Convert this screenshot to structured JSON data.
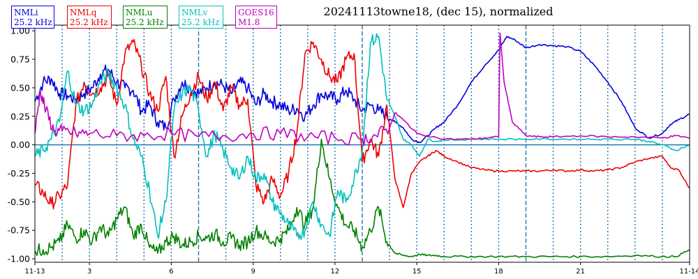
{
  "chart_data": {
    "type": "line",
    "title": "20241113towne18, (dec 15), normalized",
    "xlabel": "",
    "ylabel": "",
    "ylim": [
      -1.03,
      1.05
    ],
    "y_ticks": [
      "1.00",
      "0.75",
      "0.50",
      "0.25",
      "0.00",
      "-0.25",
      "-0.50",
      "-0.75",
      "-1.00"
    ],
    "x_tick_labels": [
      {
        "day": 0,
        "label": "11-13"
      },
      {
        "day": 2,
        "label": "3"
      },
      {
        "day": 5,
        "label": "6"
      },
      {
        "day": 8,
        "label": "9"
      },
      {
        "day": 11,
        "label": "12"
      },
      {
        "day": 14,
        "label": "15"
      },
      {
        "day": 17,
        "label": "18"
      },
      {
        "day": 20,
        "label": "21"
      },
      {
        "day": 23,
        "label": "11-14"
      }
    ],
    "x_range_hours": [
      0,
      24
    ],
    "vlines_dotted_hours": [
      1,
      2,
      3,
      4,
      5,
      7,
      8,
      9,
      10,
      11,
      13,
      14,
      15,
      16,
      17,
      19,
      20,
      21,
      22,
      23
    ],
    "vlines_dashed_hours": [
      6,
      12,
      18
    ],
    "hline_zero": true,
    "legend": [
      {
        "name": "NMLi",
        "sub": "25.2 kHz",
        "color": "#0000dd"
      },
      {
        "name": "NMLq",
        "sub": "25.2 kHz",
        "color": "#ee0000"
      },
      {
        "name": "NMLu",
        "sub": "25.2 kHz",
        "color": "#008000"
      },
      {
        "name": "NMLv",
        "sub": "25.2 kHz",
        "color": "#00bfbf"
      },
      {
        "name": "GOES16",
        "sub": "M1.8",
        "color": "#bf00bf"
      }
    ],
    "series": [
      {
        "name": "NMLi",
        "color": "#0000dd",
        "x": [
          0,
          0.3,
          0.6,
          0.9,
          1.2,
          1.5,
          1.8,
          2.1,
          2.4,
          2.7,
          3.0,
          3.3,
          3.6,
          3.9,
          4.2,
          4.5,
          4.8,
          5.1,
          5.4,
          5.7,
          6.0,
          6.3,
          6.6,
          6.9,
          7.2,
          7.5,
          7.8,
          8.1,
          8.4,
          8.7,
          9.0,
          9.3,
          9.6,
          9.9,
          10.2,
          10.5,
          10.8,
          11.1,
          11.4,
          11.7,
          12.0,
          12.3,
          12.6,
          12.9,
          13.2,
          13.5,
          13.8,
          14.1,
          14.4,
          14.7,
          15.0,
          15.5,
          16.0,
          16.5,
          17.0,
          17.3,
          17.6,
          18.0,
          18.5,
          19.0,
          19.5,
          20.0,
          20.5,
          21.0,
          21.5,
          22.0,
          22.5,
          23.0,
          23.3,
          23.6,
          24.0
        ],
        "y": [
          0.38,
          0.55,
          0.58,
          0.45,
          0.43,
          0.4,
          0.45,
          0.5,
          0.62,
          0.66,
          0.55,
          0.5,
          0.48,
          0.3,
          0.35,
          0.2,
          0.15,
          0.4,
          0.55,
          0.5,
          0.45,
          0.5,
          0.55,
          0.52,
          0.45,
          0.55,
          0.5,
          0.35,
          0.45,
          0.38,
          0.35,
          0.3,
          0.32,
          0.25,
          0.35,
          0.45,
          0.42,
          0.4,
          0.48,
          0.4,
          0.3,
          0.35,
          0.3,
          0.25,
          0.2,
          0.15,
          0.05,
          0.02,
          0.08,
          0.15,
          0.2,
          0.35,
          0.55,
          0.7,
          0.83,
          0.95,
          0.92,
          0.85,
          0.88,
          0.87,
          0.86,
          0.82,
          0.7,
          0.55,
          0.38,
          0.15,
          0.06,
          0.1,
          0.18,
          0.22,
          0.27
        ]
      },
      {
        "name": "NMLq",
        "color": "#ee0000",
        "x": [
          0,
          0.3,
          0.6,
          0.9,
          1.2,
          1.5,
          1.8,
          2.1,
          2.4,
          2.7,
          3.0,
          3.3,
          3.6,
          3.9,
          4.2,
          4.5,
          4.8,
          5.1,
          5.4,
          5.7,
          6.0,
          6.3,
          6.6,
          6.9,
          7.2,
          7.5,
          7.8,
          8.1,
          8.4,
          8.7,
          9.0,
          9.3,
          9.6,
          9.9,
          10.2,
          10.5,
          10.8,
          11.1,
          11.4,
          11.7,
          12.0,
          12.3,
          12.6,
          12.9,
          13.2,
          13.5,
          13.8,
          14.1,
          14.4,
          14.7,
          15.0,
          15.5,
          16.0,
          16.5,
          17.0,
          17.5,
          18.0,
          18.5,
          19.0,
          19.5,
          20.0,
          20.5,
          21.0,
          21.5,
          22.0,
          22.5,
          23.0,
          23.3,
          23.6,
          24.0
        ],
        "y": [
          -0.35,
          -0.42,
          -0.52,
          -0.45,
          -0.35,
          0.35,
          0.55,
          0.45,
          0.5,
          0.6,
          0.35,
          0.8,
          0.9,
          0.7,
          0.45,
          0.3,
          0.6,
          -0.1,
          0.25,
          0.45,
          0.6,
          0.4,
          0.55,
          0.3,
          0.5,
          0.35,
          0.4,
          -0.35,
          -0.5,
          -0.3,
          -0.45,
          -0.25,
          0.1,
          0.8,
          0.9,
          0.75,
          0.6,
          0.55,
          0.75,
          0.8,
          -0.15,
          0.05,
          -0.1,
          0.35,
          -0.3,
          -0.55,
          -0.25,
          -0.15,
          -0.1,
          -0.05,
          -0.1,
          -0.15,
          -0.2,
          -0.22,
          -0.23,
          -0.23,
          -0.23,
          -0.23,
          -0.22,
          -0.23,
          -0.22,
          -0.23,
          -0.22,
          -0.2,
          -0.15,
          -0.12,
          -0.1,
          -0.2,
          -0.22,
          -0.38
        ]
      },
      {
        "name": "NMLu",
        "color": "#008000",
        "x": [
          0,
          0.3,
          0.6,
          0.9,
          1.2,
          1.5,
          1.8,
          2.1,
          2.4,
          2.7,
          3.0,
          3.3,
          3.6,
          3.9,
          4.2,
          4.5,
          4.8,
          5.1,
          5.4,
          5.7,
          6.0,
          6.3,
          6.6,
          6.9,
          7.2,
          7.5,
          7.8,
          8.1,
          8.4,
          8.7,
          9.0,
          9.3,
          9.6,
          9.9,
          10.2,
          10.5,
          10.8,
          11.1,
          11.4,
          11.7,
          12.0,
          12.3,
          12.6,
          12.9,
          13.2,
          13.5,
          13.8,
          14.1,
          14.4,
          14.7,
          15.0,
          16.0,
          17.0,
          18.0,
          19.0,
          20.0,
          21.0,
          22.0,
          23.0,
          23.5,
          24.0
        ],
        "y": [
          -0.93,
          -0.92,
          -0.9,
          -0.85,
          -0.7,
          -0.82,
          -0.75,
          -0.85,
          -0.72,
          -0.8,
          -0.65,
          -0.55,
          -0.8,
          -0.7,
          -0.9,
          -0.95,
          -0.85,
          -0.8,
          -0.88,
          -0.85,
          -0.8,
          -0.82,
          -0.78,
          -0.85,
          -0.82,
          -0.88,
          -0.85,
          -0.75,
          -0.8,
          -0.85,
          -0.82,
          -0.75,
          -0.55,
          -0.7,
          -0.55,
          0.05,
          -0.3,
          -0.55,
          -0.7,
          -0.75,
          -0.9,
          -0.75,
          -0.55,
          -0.85,
          -0.95,
          -0.97,
          -0.98,
          -0.96,
          -0.97,
          -0.97,
          -0.98,
          -0.98,
          -0.98,
          -0.98,
          -0.98,
          -0.98,
          -0.98,
          -0.97,
          -0.98,
          -0.98,
          -0.92
        ]
      },
      {
        "name": "NMLv",
        "color": "#00bfbf",
        "x": [
          0,
          0.3,
          0.6,
          0.9,
          1.2,
          1.5,
          1.8,
          2.1,
          2.4,
          2.7,
          3.0,
          3.3,
          3.6,
          3.9,
          4.2,
          4.5,
          4.8,
          5.1,
          5.4,
          5.7,
          6.0,
          6.3,
          6.6,
          6.9,
          7.2,
          7.5,
          7.8,
          8.1,
          8.4,
          8.7,
          9.0,
          9.3,
          9.6,
          9.9,
          10.2,
          10.5,
          10.8,
          11.1,
          11.4,
          11.7,
          12.0,
          12.3,
          12.6,
          12.9,
          13.2,
          13.5,
          13.8,
          14.1,
          14.4,
          14.7,
          15.0,
          16.0,
          17.0,
          18.0,
          19.0,
          20.0,
          21.0,
          22.0,
          22.5,
          23.0,
          23.5,
          24.0
        ],
        "y": [
          -0.1,
          -0.05,
          0.05,
          0.2,
          0.65,
          0.35,
          0.3,
          0.35,
          0.55,
          0.62,
          0.5,
          0.35,
          0.05,
          -0.1,
          -0.4,
          -0.8,
          -0.5,
          0.3,
          0.45,
          0.5,
          0.3,
          -0.1,
          0.1,
          -0.05,
          -0.2,
          -0.3,
          -0.1,
          -0.3,
          -0.25,
          -0.5,
          -0.6,
          -0.7,
          -0.8,
          -0.75,
          -0.5,
          -0.7,
          -0.8,
          -0.4,
          -0.5,
          -0.3,
          -0.05,
          0.9,
          0.95,
          0.4,
          0.25,
          0.05,
          0.0,
          -0.1,
          0.05,
          0.03,
          0.04,
          0.05,
          0.05,
          0.05,
          0.05,
          0.05,
          0.05,
          0.05,
          0.03,
          0.0,
          -0.05,
          0.0
        ]
      },
      {
        "name": "GOES16",
        "color": "#bf00bf",
        "x": [
          0,
          0.2,
          0.4,
          0.7,
          1.0,
          1.5,
          2.0,
          3.0,
          4.0,
          5.0,
          6.0,
          7.0,
          8.0,
          9.0,
          10.0,
          11.0,
          12.0,
          12.5,
          13.0,
          13.2,
          13.5,
          14.0,
          15.0,
          16.0,
          16.5,
          17.0,
          17.05,
          17.2,
          17.5,
          18.0,
          18.5,
          19.0,
          20.0,
          21.0,
          22.0,
          23.0,
          23.5,
          24.0
        ],
        "y": [
          0.1,
          0.48,
          0.3,
          0.12,
          0.12,
          0.1,
          0.1,
          0.08,
          0.08,
          0.1,
          0.07,
          0.08,
          0.1,
          0.1,
          0.07,
          0.06,
          0.05,
          0.08,
          0.15,
          0.28,
          0.22,
          0.1,
          0.05,
          0.05,
          0.06,
          0.07,
          0.98,
          0.55,
          0.2,
          0.08,
          0.07,
          0.07,
          0.08,
          0.07,
          0.07,
          0.06,
          0.08,
          0.06
        ]
      }
    ]
  }
}
